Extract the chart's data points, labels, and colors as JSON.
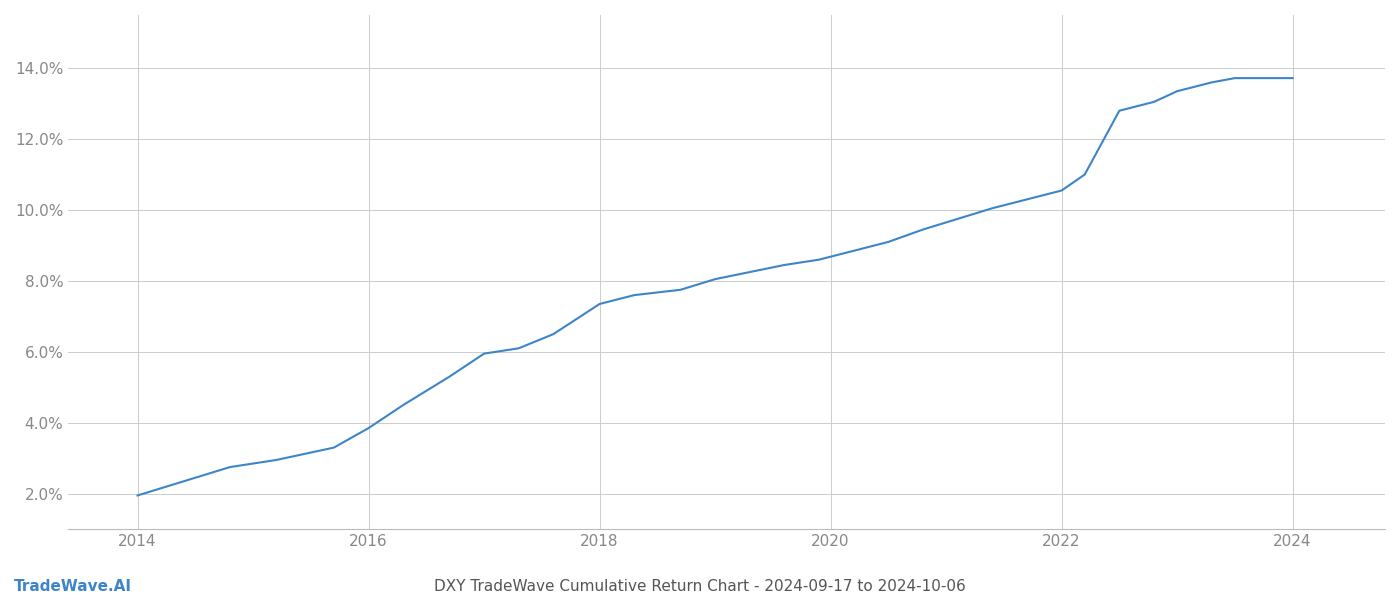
{
  "title": "DXY TradeWave Cumulative Return Chart - 2024-09-17 to 2024-10-06",
  "watermark": "TradeWave.AI",
  "line_color": "#3d85c8",
  "background_color": "#ffffff",
  "grid_color": "#cccccc",
  "x_values": [
    2014.0,
    2014.4,
    2014.8,
    2015.2,
    2015.7,
    2016.0,
    2016.3,
    2016.7,
    2017.0,
    2017.3,
    2017.6,
    2018.0,
    2018.3,
    2018.7,
    2019.0,
    2019.3,
    2019.6,
    2019.9,
    2020.2,
    2020.5,
    2020.8,
    2021.1,
    2021.4,
    2021.7,
    2022.0,
    2022.2,
    2022.5,
    2022.8,
    2023.0,
    2023.3,
    2023.5,
    2023.7,
    2024.0
  ],
  "y_values": [
    1.95,
    2.35,
    2.75,
    2.95,
    3.3,
    3.85,
    4.5,
    5.3,
    5.95,
    6.1,
    6.5,
    7.35,
    7.6,
    7.75,
    8.05,
    8.25,
    8.45,
    8.6,
    8.85,
    9.1,
    9.45,
    9.75,
    10.05,
    10.3,
    10.55,
    11.0,
    12.8,
    13.05,
    13.35,
    13.6,
    13.72,
    13.72,
    13.72
  ],
  "xlim": [
    2013.4,
    2024.8
  ],
  "ylim": [
    1.0,
    15.5
  ],
  "yticks": [
    2.0,
    4.0,
    6.0,
    8.0,
    10.0,
    12.0,
    14.0
  ],
  "xticks": [
    2014,
    2016,
    2018,
    2020,
    2022,
    2024
  ],
  "line_width": 1.5,
  "title_fontsize": 11,
  "tick_fontsize": 11,
  "watermark_fontsize": 11,
  "tick_color": "#888888",
  "title_color": "#555555",
  "watermark_color": "#3d85c8",
  "spine_color": "#bbbbbb"
}
